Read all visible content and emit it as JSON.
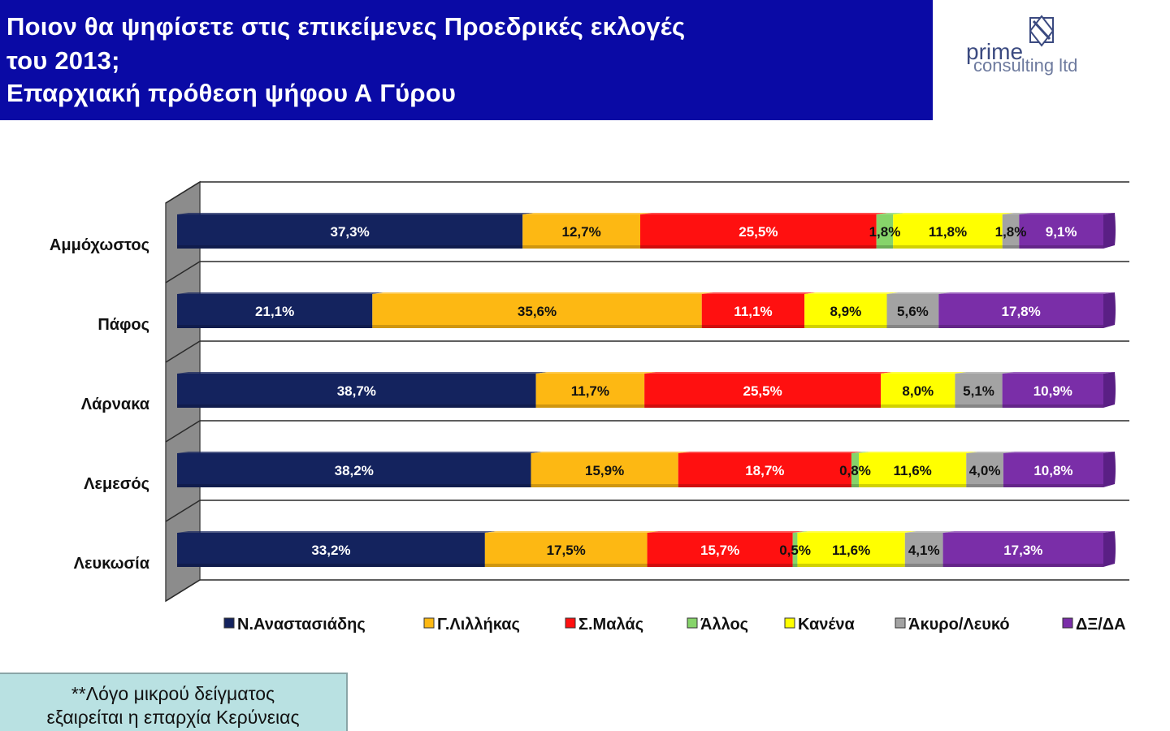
{
  "header": {
    "title_line_1": "Ποιον θα ψηφίσετε στις επικείμενες Προεδρικές εκλογές",
    "title_line_2": "του 2013;",
    "title_line_3": "Επαρχιακή πρόθεση ψήφου Α Γύρου",
    "background_color": "#0a0aa5"
  },
  "logo": {
    "text_1": "prime",
    "text_2": "consulting ltd"
  },
  "note": {
    "line_1": "**Λόγο μικρού δείγματος",
    "line_2": "εξαιρείται η επαρχία Κερύνειας"
  },
  "chart_data": {
    "type": "bar",
    "orientation": "horizontal",
    "stacked": true,
    "stacking": "percent",
    "categories": [
      "Αμμόχωστος",
      "Πάφος",
      "Λάρνακα",
      "Λεμεσός",
      "Λευκωσία"
    ],
    "series": [
      {
        "name": "Ν.Αναστασιάδης",
        "color": "#14235e",
        "values": [
          37.3,
          21.1,
          38.7,
          38.2,
          33.2
        ],
        "labels": [
          "37,3%",
          "21,1%",
          "38,7%",
          "38,2%",
          "33,2%"
        ]
      },
      {
        "name": "Γ.Λιλλήκας",
        "color": "#fdb813",
        "values": [
          12.7,
          35.6,
          11.7,
          15.9,
          17.5
        ],
        "labels": [
          "12,7%",
          "35,6%",
          "11,7%",
          "15,9%",
          "17,5%"
        ]
      },
      {
        "name": "Σ.Μαλάς",
        "color": "#ff1010",
        "values": [
          25.5,
          11.1,
          25.5,
          18.7,
          15.7
        ],
        "labels": [
          "25,5%",
          "11,1%",
          "25,5%",
          "18,7%",
          "15,7%"
        ]
      },
      {
        "name": "Άλλος",
        "color": "#86d46a",
        "values": [
          1.8,
          0,
          0,
          0.8,
          0.5
        ],
        "labels": [
          "1,8%",
          "",
          "",
          "0,8%",
          "0,5%"
        ]
      },
      {
        "name": "Κανένα",
        "color": "#ffff00",
        "values": [
          11.8,
          8.9,
          8.0,
          11.6,
          11.6
        ],
        "labels": [
          "11,8%",
          "8,9%",
          "8,0%",
          "11,6%",
          "11,6%"
        ]
      },
      {
        "name": "Άκυρο/Λευκό",
        "color": "#a3a3a3",
        "values": [
          1.8,
          5.6,
          5.1,
          4.0,
          4.1
        ],
        "labels": [
          "1,8%",
          "5,6%",
          "5,1%",
          "4,0%",
          "4,1%"
        ]
      },
      {
        "name": "ΔΞ/ΔΑ",
        "color": "#7a2ea8",
        "values": [
          9.1,
          17.8,
          10.9,
          10.8,
          17.3
        ],
        "labels": [
          "9,1%",
          "17,8%",
          "10,9%",
          "10,8%",
          "17,3%"
        ]
      }
    ],
    "legend_position": "bottom",
    "gridlines": true
  }
}
